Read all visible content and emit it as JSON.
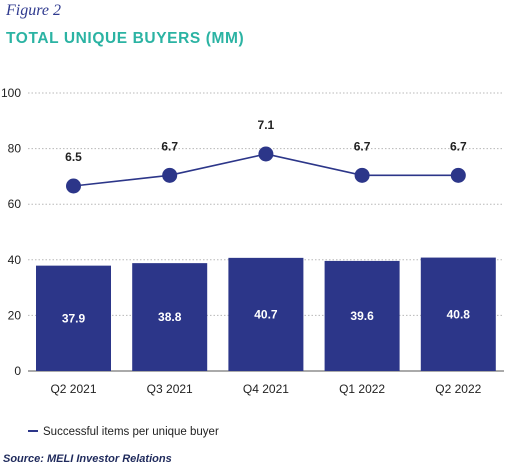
{
  "figure_label": "Figure 2",
  "source": "Source: MELI Investor Relations",
  "colors": {
    "bar": "#2c3689",
    "line": "#2c3689",
    "title": "#2bb3a3",
    "grid": "#b8b8b8"
  },
  "chart_data": {
    "type": "bar",
    "title": "TOTAL UNIQUE BUYERS (MM)",
    "categories": [
      "Q2 2021",
      "Q3 2021",
      "Q4 2021",
      "Q1 2022",
      "Q2 2022"
    ],
    "values": [
      37.9,
      38.8,
      40.7,
      39.6,
      40.8
    ],
    "bar_labels": [
      "37.9",
      "38.8",
      "40.7",
      "39.6",
      "40.8"
    ],
    "yticks": [
      "0",
      "20",
      "40",
      "60",
      "80",
      "100"
    ],
    "ylim": [
      0,
      100
    ],
    "grid": true,
    "line_series": {
      "name": "Successful items per unique buyer",
      "values": [
        6.5,
        6.7,
        7.1,
        6.7,
        6.7
      ],
      "labels": [
        "6.5",
        "6.7",
        "7.1",
        "6.7",
        "6.7"
      ]
    },
    "legend_placement": "bottom-left"
  }
}
